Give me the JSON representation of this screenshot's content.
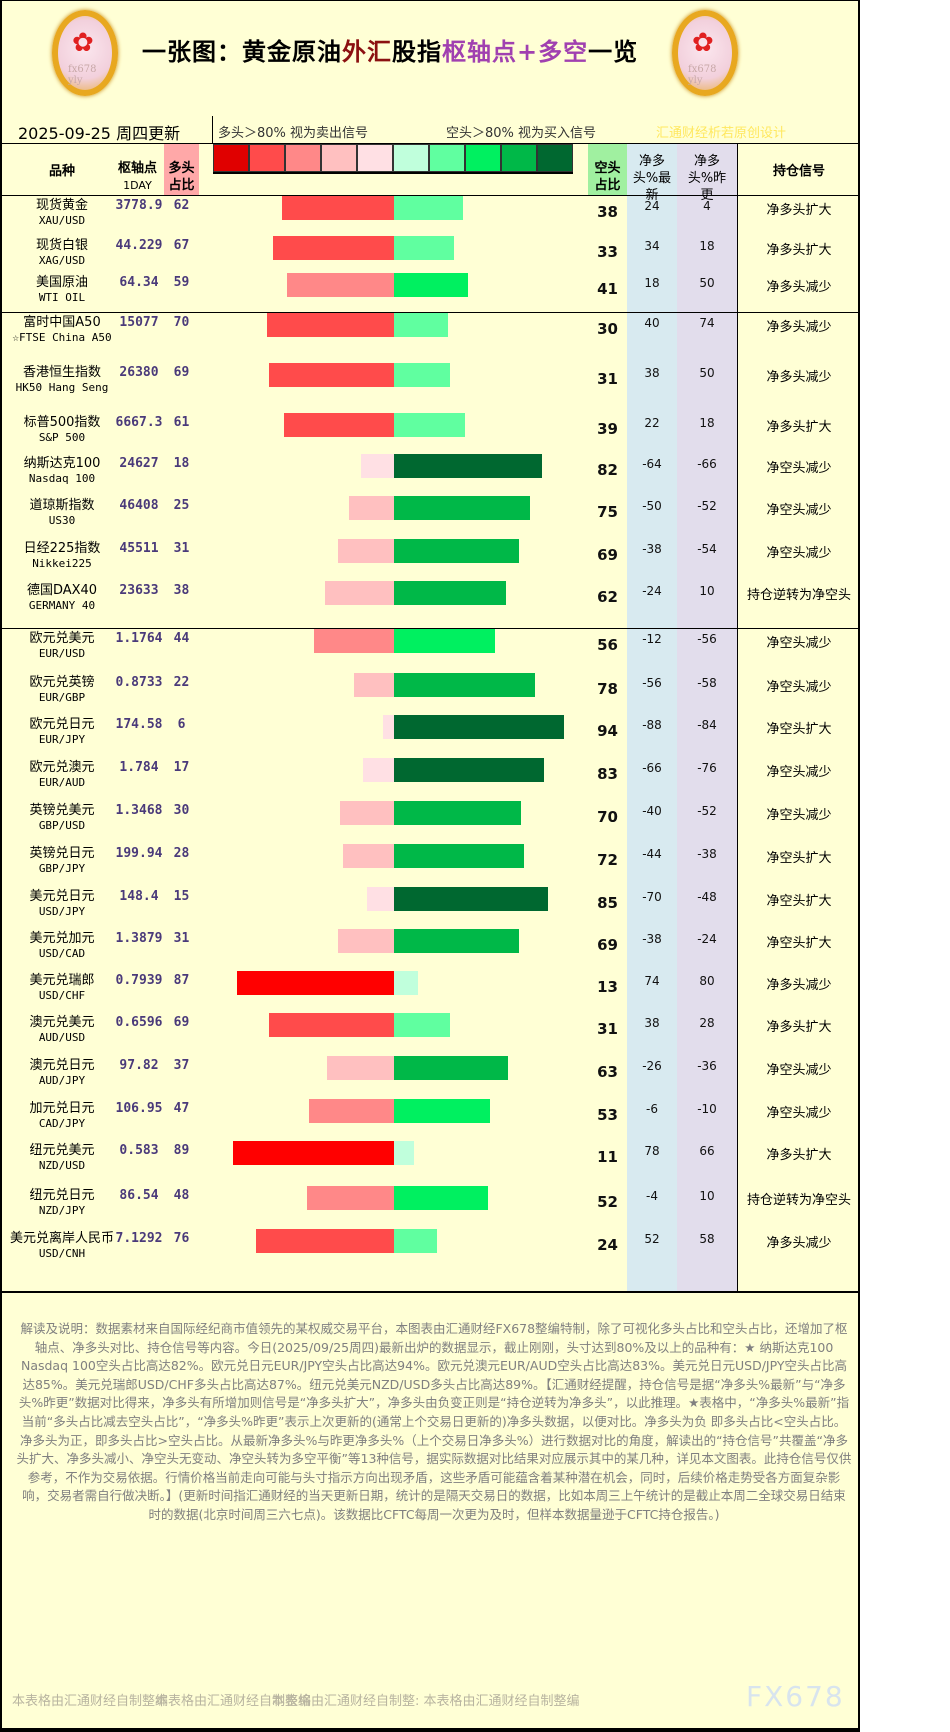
{
  "header": {
    "title_parts": [
      "一张图：黄金原油",
      "外汇",
      "股指",
      "枢轴点+多空",
      "一览"
    ],
    "date": "2025-09-25  周四更新",
    "legend_long": "多头＞80% 视为卖出信号",
    "legend_short": "空头＞80% 视为买入信号",
    "credit": "汇通财经析若原创设计",
    "logo_text": "fx678 yly",
    "legend_colors": [
      "#E00000",
      "#FF4B4B",
      "#FF8888",
      "#FFC0C0",
      "#FFE0E4",
      "#C0FFDC",
      "#60FFA0",
      "#00F060",
      "#00B848",
      "#006830"
    ]
  },
  "columns": {
    "name": "品种",
    "pivot": "枢轴点",
    "pivot_sub": "1DAY",
    "long": "多头占比",
    "short": "空头占比",
    "net_latest": "净多头%最新",
    "net_prev": "净多头%昨更",
    "signal": "持仓信号"
  },
  "rows": [
    {
      "cn": "现货黄金",
      "en": "XAU/USD",
      "pivot": "3778.9",
      "long": 62,
      "short": 38,
      "net": "24",
      "prev": "4",
      "signal": "净多头扩大"
    },
    {
      "cn": "现货白银",
      "en": "XAG/USD",
      "pivot": "44.229",
      "long": 67,
      "short": 33,
      "net": "34",
      "prev": "18",
      "signal": "净多头扩大"
    },
    {
      "cn": "美国原油",
      "en": "WTI OIL",
      "pivot": "64.34",
      "long": 59,
      "short": 41,
      "net": "18",
      "prev": "50",
      "signal": "净多头减少"
    },
    {
      "cn": "富时中国A50",
      "en": "☆FTSE China A50",
      "pivot": "15077",
      "long": 70,
      "short": 30,
      "net": "40",
      "prev": "74",
      "signal": "净多头减少"
    },
    {
      "cn": "香港恒生指数",
      "en": "HK50 Hang Seng",
      "pivot": "26380",
      "long": 69,
      "short": 31,
      "net": "38",
      "prev": "50",
      "signal": "净多头减少"
    },
    {
      "cn": "标普500指数",
      "en": "S&P 500",
      "pivot": "6667.3",
      "long": 61,
      "short": 39,
      "net": "22",
      "prev": "18",
      "signal": "净多头扩大"
    },
    {
      "cn": "纳斯达克100",
      "en": "Nasdaq 100",
      "pivot": "24627",
      "long": 18,
      "short": 82,
      "net": "-64",
      "prev": "-66",
      "signal": "净空头减少"
    },
    {
      "cn": "道琼斯指数",
      "en": "US30",
      "pivot": "46408",
      "long": 25,
      "short": 75,
      "net": "-50",
      "prev": "-52",
      "signal": "净空头减少"
    },
    {
      "cn": "日经225指数",
      "en": "Nikkei225",
      "pivot": "45511",
      "long": 31,
      "short": 69,
      "net": "-38",
      "prev": "-54",
      "signal": "净空头减少"
    },
    {
      "cn": "德国DAX40",
      "en": "GERMANY 40",
      "pivot": "23633",
      "long": 38,
      "short": 62,
      "net": "-24",
      "prev": "10",
      "signal": "持仓逆转为净空头"
    },
    {
      "cn": "欧元兑美元",
      "en": "EUR/USD",
      "pivot": "1.1764",
      "long": 44,
      "short": 56,
      "net": "-12",
      "prev": "-56",
      "signal": "净空头减少"
    },
    {
      "cn": "欧元兑英镑",
      "en": "EUR/GBP",
      "pivot": "0.8733",
      "long": 22,
      "short": 78,
      "net": "-56",
      "prev": "-58",
      "signal": "净空头减少"
    },
    {
      "cn": "欧元兑日元",
      "en": "EUR/JPY",
      "pivot": "174.58",
      "long": 6,
      "short": 94,
      "net": "-88",
      "prev": "-84",
      "signal": "净空头扩大"
    },
    {
      "cn": "欧元兑澳元",
      "en": "EUR/AUD",
      "pivot": "1.784",
      "long": 17,
      "short": 83,
      "net": "-66",
      "prev": "-76",
      "signal": "净空头减少"
    },
    {
      "cn": "英镑兑美元",
      "en": "GBP/USD",
      "pivot": "1.3468",
      "long": 30,
      "short": 70,
      "net": "-40",
      "prev": "-52",
      "signal": "净空头减少"
    },
    {
      "cn": "英镑兑日元",
      "en": "GBP/JPY",
      "pivot": "199.94",
      "long": 28,
      "short": 72,
      "net": "-44",
      "prev": "-38",
      "signal": "净空头扩大"
    },
    {
      "cn": "美元兑日元",
      "en": "USD/JPY",
      "pivot": "148.4",
      "long": 15,
      "short": 85,
      "net": "-70",
      "prev": "-48",
      "signal": "净空头扩大"
    },
    {
      "cn": "美元兑加元",
      "en": "USD/CAD",
      "pivot": "1.3879",
      "long": 31,
      "short": 69,
      "net": "-38",
      "prev": "-24",
      "signal": "净空头扩大"
    },
    {
      "cn": "美元兑瑞郎",
      "en": "USD/CHF",
      "pivot": "0.7939",
      "long": 87,
      "short": 13,
      "net": "74",
      "prev": "80",
      "signal": "净多头减少"
    },
    {
      "cn": "澳元兑美元",
      "en": "AUD/USD",
      "pivot": "0.6596",
      "long": 69,
      "short": 31,
      "net": "38",
      "prev": "28",
      "signal": "净多头扩大"
    },
    {
      "cn": "澳元兑日元",
      "en": "AUD/JPY",
      "pivot": "97.82",
      "long": 37,
      "short": 63,
      "net": "-26",
      "prev": "-36",
      "signal": "净空头减少"
    },
    {
      "cn": "加元兑日元",
      "en": "CAD/JPY",
      "pivot": "106.95",
      "long": 47,
      "short": 53,
      "net": "-6",
      "prev": "-10",
      "signal": "净空头减少"
    },
    {
      "cn": "纽元兑美元",
      "en": "NZD/USD",
      "pivot": "0.583",
      "long": 89,
      "short": 11,
      "net": "78",
      "prev": "66",
      "signal": "净多头扩大"
    },
    {
      "cn": "纽元兑日元",
      "en": "NZD/JPY",
      "pivot": "86.54",
      "long": 48,
      "short": 52,
      "net": "-4",
      "prev": "10",
      "signal": "持仓逆转为净空头"
    },
    {
      "cn": "美元兑离岸人民币",
      "en": "USD/CNH",
      "pivot": "7.1292",
      "long": 76,
      "short": 24,
      "net": "52",
      "prev": "58",
      "signal": "净多头减少"
    }
  ],
  "description": "解读及说明：数据素材来自国际经纪商市值领先的某权威交易平台，本图表由汇通财经FX678整编特制，除了可视化多头占比和空头占比，还增加了枢轴点、净多头对比、持仓信号等内容。今日(2025/09/25周四)最新出炉的数据显示，截止刚刚，头寸达到80%及以上的品种有：★ 纳斯达克100 Nasdaq 100空头占比高达82%。欧元兑日元EUR/JPY空头占比高达94%。欧元兑澳元EUR/AUD空头占比高达83%。美元兑日元USD/JPY空头占比高达85%。美元兑瑞郎USD/CHF多头占比高达87%。纽元兑美元NZD/USD多头占比高达89%。【汇通财经提醒，持仓信号是据“净多头%最新”与“净多头%昨更”数据对比得来，净多头有所增加则信号是“净多头扩大”，净多头由负变正则是“持仓逆转为净多头”，以此推理。★表格中，“净多头%最新”指当前“多头占比减去空头占比”，“净多头%昨更”表示上次更新的(通常上个交易日更新的)净多头数据，以便对比。净多头为负 即多头占比<空头占比。净多头为正，即多头占比>空头占比。从最新净多头%与昨更净多头%（上个交易日净多头%）进行数据对比的角度，解读出的“持仓信号”共覆盖“净多头扩大、净多头减小、净空头无变动、净空头转为多空平衡”等13种信号，据实际数据对比结果对应展示其中的某几种，详见本文图表。此持仓信号仅供参考，不作为交易依据。行情价格当前走向可能与头寸指示方向出现矛盾，这些矛盾可能蕴含着某种潜在机会，同时，后续价格走势受各方面复杂影响，交易者需自行做决断。】(更新时间指汇通财经的当天更新日期，统计的是隔天交易日的数据，比如本周三上午统计的是截止本周二全球交易日结束时的数据(北京时间周三六七点)。该数据比CFTC每周一次更为及时，但样本数据量逊于CFTC持仓报告。)",
  "footer": {
    "notes": [
      "本表格由汇通财经自制整编",
      "本表格由汇通财经自制整编",
      "本表格由汇通财经自制整: 本表格由汇通财经自制整编"
    ],
    "brand": "FX678"
  }
}
